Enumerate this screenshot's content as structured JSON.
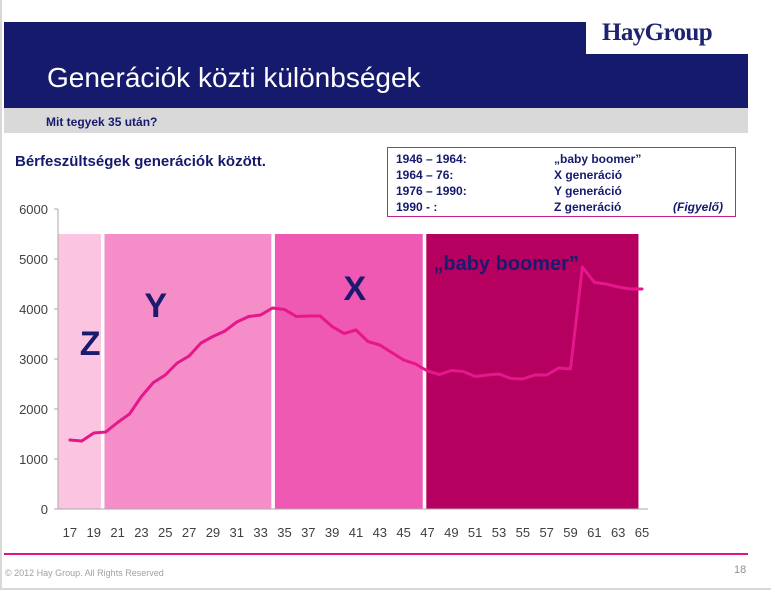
{
  "header": {
    "logo": "HayGroup",
    "title": "Generációk közti különbségek",
    "subtitle": "Mit tegyek 35 után?"
  },
  "chart_heading": "Bérfeszültségek generációk között.",
  "legend": [
    {
      "range": "1946 – 1964:",
      "generation": "„baby boomer”",
      "note": ""
    },
    {
      "range": "1964 – 76:",
      "generation": "X generáció",
      "note": ""
    },
    {
      "range": "1976 – 1990:",
      "generation": "Y generáció",
      "note": ""
    },
    {
      "range": "1990 -    :",
      "generation": "Z generáció",
      "note": "(Figyelő)"
    }
  ],
  "chart_data": {
    "type": "line",
    "title": "",
    "xlabel": "",
    "ylabel": "",
    "ylim": [
      0,
      6000
    ],
    "yticks": [
      0,
      1000,
      2000,
      3000,
      4000,
      5000,
      6000
    ],
    "xlim": [
      16,
      65.5
    ],
    "xticks": [
      17,
      19,
      21,
      23,
      25,
      27,
      29,
      31,
      33,
      35,
      37,
      39,
      41,
      43,
      45,
      47,
      49,
      51,
      53,
      55,
      57,
      59,
      61,
      63,
      65
    ],
    "grid": false,
    "legend": "none",
    "bands": [
      {
        "label": "Z",
        "from": 16.0,
        "to": 19.6,
        "top": 5500,
        "color": "#fbc4e0",
        "label_color": "#1a1a6e"
      },
      {
        "label": "Y",
        "from": 19.9,
        "to": 33.9,
        "top": 5500,
        "color": "#f58ec8",
        "label_color": "#1a1a6e"
      },
      {
        "label": "X",
        "from": 34.2,
        "to": 46.6,
        "top": 5500,
        "color": "#ef58b3",
        "label_color": "#1a1a6e"
      },
      {
        "label": "„baby boomer”",
        "from": 46.9,
        "to": 64.7,
        "top": 5500,
        "color": "#b5005f",
        "label_color": "#1a1a6e"
      }
    ],
    "series": [
      {
        "color": "#e5178a",
        "x": [
          17,
          18,
          19,
          20,
          21,
          22,
          23,
          24,
          25,
          26,
          27,
          28,
          29,
          30,
          31,
          32,
          33,
          34,
          35,
          36,
          37,
          38,
          39,
          40,
          41,
          42,
          43,
          44,
          45,
          46,
          47,
          48,
          49,
          50,
          51,
          52,
          53,
          54,
          55,
          56,
          57,
          58,
          59,
          60,
          61,
          62,
          63,
          64,
          65
        ],
        "values": [
          1380,
          1360,
          1520,
          1540,
          1730,
          1900,
          2250,
          2530,
          2680,
          2920,
          3060,
          3320,
          3450,
          3560,
          3740,
          3850,
          3880,
          4020,
          3990,
          3850,
          3860,
          3860,
          3650,
          3510,
          3580,
          3350,
          3280,
          3130,
          2980,
          2900,
          2760,
          2690,
          2770,
          2750,
          2650,
          2680,
          2700,
          2610,
          2600,
          2680,
          2680,
          2820,
          2800,
          4840,
          4530,
          4500,
          4440,
          4400,
          4400
        ]
      }
    ]
  },
  "footer": {
    "copyright": "© 2012 Hay Group. All Rights Reserved",
    "page": "18"
  }
}
